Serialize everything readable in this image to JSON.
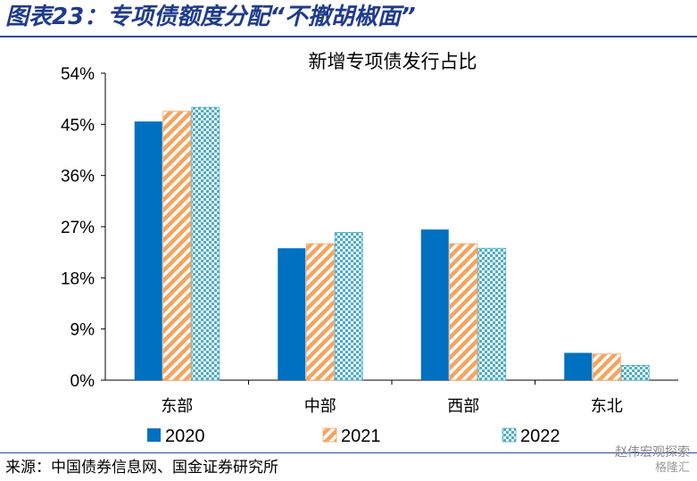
{
  "figure": {
    "title": "图表23：专项债额度分配“不撤胡椒面”",
    "source": "来源：中国债券信息网、国金证券研究所",
    "watermark_line1": "赵伟宏观探索",
    "watermark_line2": "格隆汇"
  },
  "chart_data": {
    "type": "bar",
    "title": "新增专项债发行占比",
    "categories": [
      "东部",
      "中部",
      "西部",
      "东北"
    ],
    "series": [
      {
        "name": "2020",
        "values": [
          45.5,
          23.2,
          26.5,
          4.8
        ],
        "color": "#0070c0",
        "pattern": "solid"
      },
      {
        "name": "2021",
        "values": [
          47.3,
          24.0,
          24.0,
          4.6
        ],
        "color": "#f4a460",
        "pattern": "diagonal-stripes"
      },
      {
        "name": "2022",
        "values": [
          48.0,
          26.0,
          23.2,
          2.6
        ],
        "color": "#4bacc6",
        "pattern": "checker"
      }
    ],
    "yticks": [
      "0%",
      "9%",
      "18%",
      "27%",
      "36%",
      "45%",
      "54%"
    ],
    "ylim": [
      0,
      54
    ],
    "legend_position": "bottom",
    "grid": false
  }
}
